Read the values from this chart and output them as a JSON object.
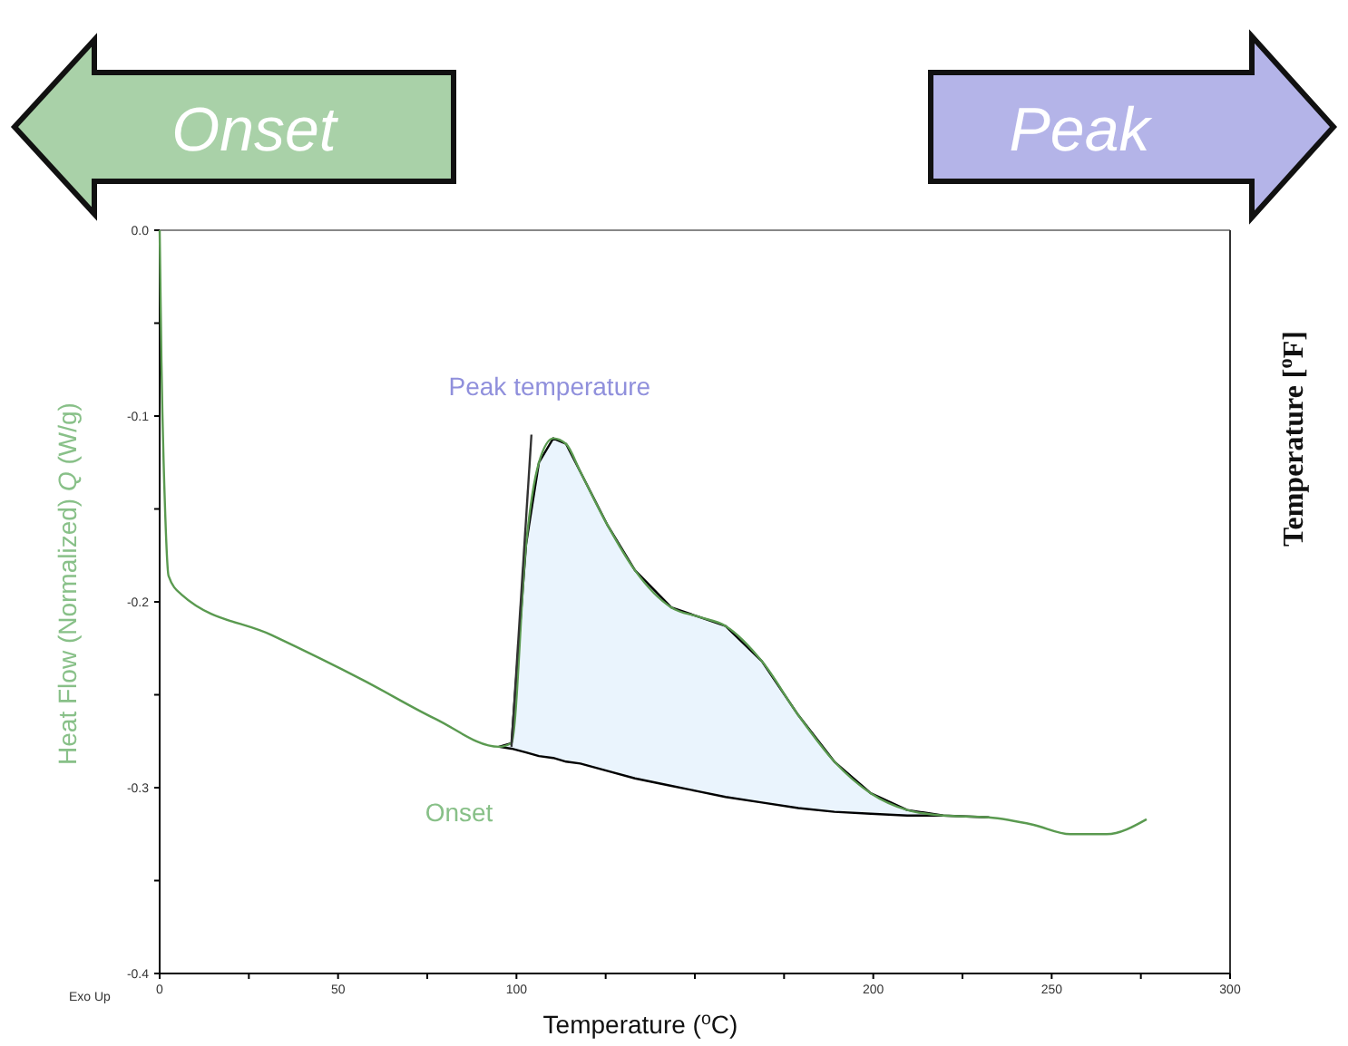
{
  "chart_data": {
    "type": "line",
    "xlabel": "Temperature ($^{o}$C)",
    "ylabel": "Heat Flow  (Normalized) Q (W/g)",
    "y2label": "Temperature [$^{o}$F]",
    "xlim": [
      0,
      300
    ],
    "ylim": [
      -0.4,
      0
    ],
    "xticks": [
      0,
      {
        "value": 25,
        "label": null
      },
      50,
      {
        "value": 75,
        "label": null
      },
      100,
      {
        "value": 125,
        "label": null
      },
      {
        "value": 150,
        "label": null
      },
      {
        "value": 175,
        "label": null
      },
      200,
      {
        "value": 225,
        "label": null
      },
      250,
      {
        "value": 275,
        "label": null
      },
      300
    ],
    "yticks": [
      {
        "value": 0,
        "label": "0.0"
      },
      {
        "value": -0.05,
        "label": null
      },
      -0.1,
      {
        "value": -0.15,
        "label": null
      },
      -0.2,
      {
        "value": -0.25,
        "label": null
      },
      -0.3,
      {
        "value": -0.35,
        "label": null
      },
      -0.4
    ],
    "series": [
      {
        "type": "area",
        "color": "#eaf4fd",
        "x": [
          95.1,
          98.6,
          102.7,
          106.3,
          110.3,
          113.9,
          117.9,
          125.6,
          133.2,
          143.4,
          151,
          158.6,
          168.8,
          179,
          189.1,
          199.3,
          209.5,
          219.6,
          232.3,
          219.6,
          209.5,
          199.3,
          189.1,
          179,
          168.8,
          158.6,
          151,
          143.4,
          133.2,
          125.6,
          117.9,
          113.9,
          110.3,
          106.3,
          102.7,
          98.6
        ],
        "values": [
          -0.278,
          -0.276,
          -0.169,
          -0.125,
          -0.112,
          -0.115,
          -0.13,
          -0.159,
          -0.183,
          -0.203,
          -0.208,
          -0.213,
          -0.232,
          -0.261,
          -0.286,
          -0.303,
          -0.312,
          -0.315,
          -0.316,
          -0.315,
          -0.315,
          -0.314,
          -0.313,
          -0.311,
          -0.308,
          -0.305,
          -0.302,
          -0.299,
          -0.295,
          -0.291,
          -0.287,
          -0.286,
          -0.284,
          -0.283,
          -0.281,
          -0.279
        ]
      },
      {
        "type": "line",
        "color": "#5a9a50",
        "x": [
          0,
          0.5,
          1.5,
          2.5,
          6.1,
          31.5,
          56.9,
          77.3,
          95.1,
          98.6,
          102.7,
          106.3,
          110.3,
          113.9,
          117.9,
          125.6,
          133.2,
          143.4,
          151,
          158.6,
          168.8,
          179,
          189.1,
          199.3,
          209.5,
          219.6,
          232.3,
          244.9,
          255.2,
          265.4,
          276.6
        ],
        "values": [
          0,
          -0.071,
          -0.149,
          -0.186,
          -0.196,
          -0.218,
          -0.242,
          -0.263,
          -0.278,
          -0.276,
          -0.169,
          -0.125,
          -0.112,
          -0.115,
          -0.13,
          -0.159,
          -0.183,
          -0.203,
          -0.208,
          -0.213,
          -0.232,
          -0.261,
          -0.286,
          -0.303,
          -0.312,
          -0.315,
          -0.316,
          -0.32,
          -0.325,
          -0.325,
          -0.317
        ]
      },
      {
        "color": "#333333",
        "x": [
          98.6,
          104.2
        ],
        "values": [
          -0.278,
          -0.11
        ]
      }
    ],
    "annotations": [
      {
        "text": "Peak temperature",
        "x": 110.3,
        "y": -0.112
      },
      {
        "text": "Onset",
        "x": 95.1,
        "y": -0.278
      },
      "Onset",
      "Peak",
      "Exo Up"
    ]
  }
}
